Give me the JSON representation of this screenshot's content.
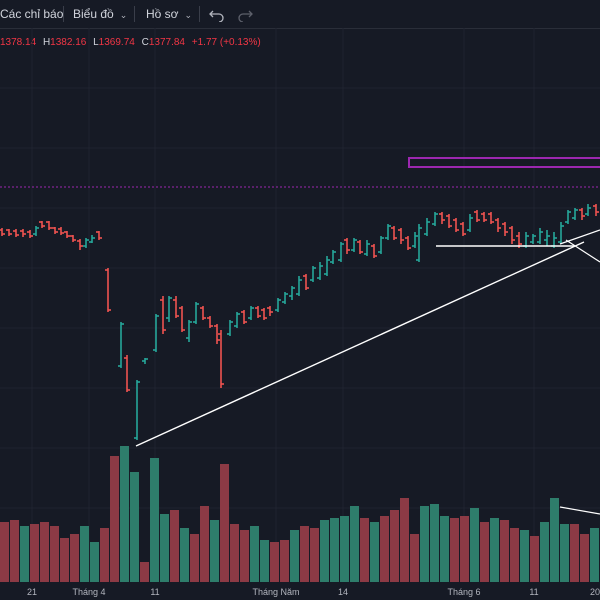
{
  "toolbar": {
    "indicators_label": "Các chỉ báo",
    "chart_label": "Biểu đồ",
    "profile_label": "Hồ sơ",
    "icons": [
      "undo-icon",
      "redo-icon",
      "chevron-down-icon"
    ]
  },
  "ohlc": {
    "open": "1378.14",
    "high_label": "H",
    "high": "1382.16",
    "low_label": "L",
    "low": "1369.74",
    "close_label": "C",
    "close": "1377.84",
    "change": "+1.77 (+0.13%)"
  },
  "colors": {
    "background": "#161a25",
    "up": "#26a69a",
    "down": "#ef5350",
    "volume_up": "#2e7d6b",
    "volume_down": "#8c3a45",
    "drawing": "#ffffff",
    "zone": "#9c27b0",
    "price_line": "#9c27b0"
  },
  "x_axis": {
    "labels": [
      {
        "text": "21",
        "pos": 32
      },
      {
        "text": "Tháng 4",
        "pos": 89
      },
      {
        "text": "11",
        "pos": 155
      },
      {
        "text": "Tháng Năm",
        "pos": 276
      },
      {
        "text": "14",
        "pos": 343
      },
      {
        "text": "Tháng 6",
        "pos": 464
      },
      {
        "text": "11",
        "pos": 534
      },
      {
        "text": "20",
        "pos": 595
      }
    ]
  }
}
